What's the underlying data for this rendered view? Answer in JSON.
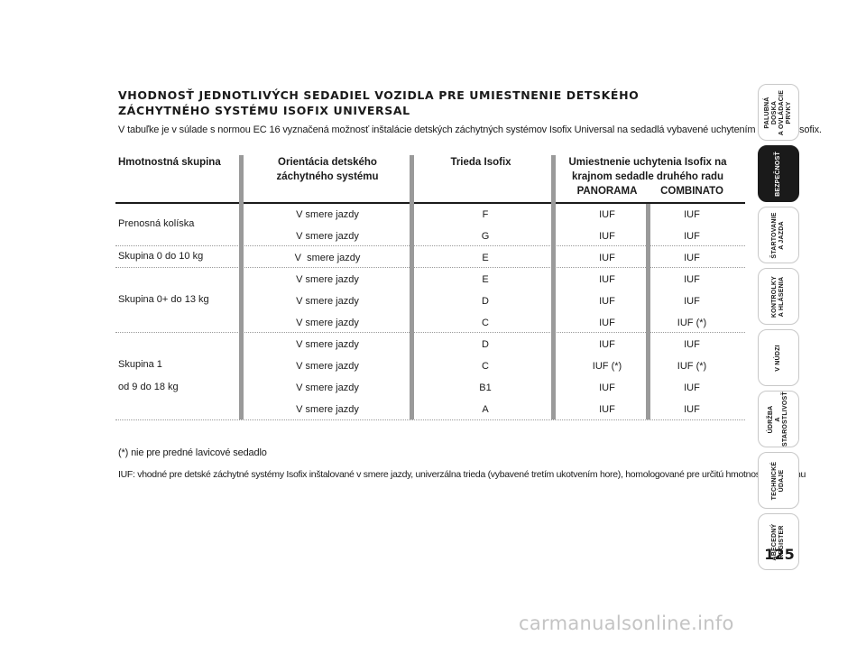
{
  "title": "VHODNOSŤ JEDNOTLIVÝCH SEDADIEL VOZIDLA PRE UMIESTNENIE DETSKÉHO ZÁCHYTNÉHO SYSTÉMU ISOFIX UNIVERSAL",
  "intro": "V tabuľke je v súlade s normou EC 16 vyznačená možnosť inštalácie detských záchytných systémov Isofix Universal na sedadlá vybavené uchytením systému Isofix.",
  "table": {
    "headers": {
      "group": "Hmotnostná skupina",
      "orientation": "Orientácia detského záchytného systému",
      "class": "Trieda Isofix",
      "position": "Umiestnenie uchytenia Isofix na krajnom sedadle druhého radu",
      "panorama": "PANORAMA",
      "combinato": "COMBINATO"
    },
    "groups": [
      {
        "label": "Prenosná kolíska"
      },
      {
        "label": "Skupina 0 do 10 kg"
      },
      {
        "label": "Skupina 0+ do 13 kg"
      },
      {
        "label": "Skupina 1",
        "label2": "od 9 do 18 kg"
      }
    ],
    "rows": [
      {
        "orientation": "V smere jazdy",
        "class": "F",
        "panorama": "IUF",
        "combinato": "IUF"
      },
      {
        "orientation": "V smere jazdy",
        "class": "G",
        "panorama": "IUF",
        "combinato": "IUF"
      },
      {
        "orientation": "V  smere jazdy",
        "class": "E",
        "panorama": "IUF",
        "combinato": "IUF"
      },
      {
        "orientation": "V smere jazdy",
        "class": "E",
        "panorama": "IUF",
        "combinato": "IUF"
      },
      {
        "orientation": "V smere jazdy",
        "class": "D",
        "panorama": "IUF",
        "combinato": "IUF"
      },
      {
        "orientation": "V smere jazdy",
        "class": "C",
        "panorama": "IUF",
        "combinato": "IUF (*)"
      },
      {
        "orientation": "V smere jazdy",
        "class": "D",
        "panorama": "IUF",
        "combinato": "IUF"
      },
      {
        "orientation": "V smere jazdy",
        "class": "C",
        "panorama": "IUF (*)",
        "combinato": "IUF (*)"
      },
      {
        "orientation": "V smere jazdy",
        "class": "B1",
        "panorama": "IUF",
        "combinato": "IUF"
      },
      {
        "orientation": "V smere jazdy",
        "class": "A",
        "panorama": "IUF",
        "combinato": "IUF"
      }
    ]
  },
  "footnote1": "(*) nie pre predné lavicové sedadlo",
  "footnote2": "IUF: vhodné pre detské záchytné systémy Isofix inštalované v smere jazdy, univerzálna trieda (vybavené tretím ukotvením hore), homologované pre určitú hmotnostnú skupinu",
  "tabs": [
    {
      "line1": "PALUBNÁ DOSKA",
      "line2": "A OVLÁDACIE PRVKY",
      "active": false
    },
    {
      "line1": "BEZPEČNOSŤ",
      "line2": "",
      "active": true
    },
    {
      "line1": "ŠTARTOVANIE",
      "line2": "A JAZDA",
      "active": false
    },
    {
      "line1": "KONTROLKY",
      "line2": "A HLÁSENIA",
      "active": false
    },
    {
      "line1": "V NÚDZI",
      "line2": "",
      "active": false
    },
    {
      "line1": "ÚDRŽBA",
      "line2": "A STAROSTLIVOSŤ",
      "active": false
    },
    {
      "line1": "TECHNICKÉ",
      "line2": "ÚDAJE",
      "active": false
    },
    {
      "line1": "ABECEDNÝ",
      "line2": "REGISTER",
      "active": false
    }
  ],
  "page_number": "125",
  "watermark": "carmanualsonline.info"
}
